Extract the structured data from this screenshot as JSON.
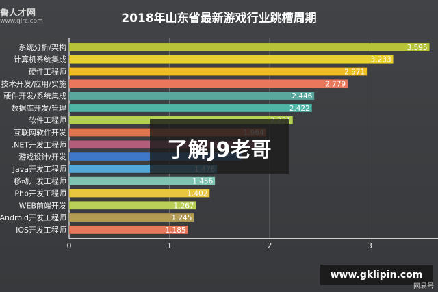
{
  "header": {
    "logo": "鲁人才网",
    "logo_url": "www.qlrc.com",
    "title": "2018年山东省最新游戏行业跳槽周期"
  },
  "overlay": {
    "caption": "了解J9老哥"
  },
  "watermark": {
    "site": "www.gklipin.com",
    "corner": "网易号"
  },
  "chart_data": {
    "type": "bar",
    "orientation": "horizontal",
    "categories": [
      "系统分析/架构",
      "计算机系统集成",
      "硬件工程师",
      "技术开发/应用/实施",
      "硬件开发/系统集成",
      "数据库开发/管理",
      "软件工程师",
      "互联网软件开发",
      ".NET开发工程师",
      "游戏设计/开发",
      "Java开发工程师",
      "移动开发工程师",
      "Php开发工程师",
      "WEB前端开发",
      "Android开发工程师",
      "IOS开发工程师"
    ],
    "values": [
      3.595,
      3.233,
      2.971,
      2.779,
      2.446,
      2.422,
      2.231,
      1.964,
      1.867,
      1.721,
      1.476,
      1.456,
      1.402,
      1.267,
      1.245,
      1.185
    ],
    "value_labels": [
      "3.595",
      "3.233",
      "2.971",
      "2.779",
      "2.446",
      "2.422",
      "2.231",
      "1.964",
      "",
      "",
      "1.476",
      "1.456",
      "1.402",
      "1.267",
      "1.245",
      "1.185"
    ],
    "colors": [
      "#b6c43a",
      "#e6cf2f",
      "#efbd22",
      "#e8785c",
      "#5aa79d",
      "#4fb6a6",
      "#b3d04f",
      "#e0744f",
      "#b25d7a",
      "#3f78c7",
      "#52a9dc",
      "#7fc3b3",
      "#e9c640",
      "#b9cf57",
      "#b59c55",
      "#e8785c"
    ],
    "xlim": [
      0,
      3.75
    ],
    "xticks": [
      "0",
      "1",
      "2",
      "3"
    ],
    "grid": true
  }
}
